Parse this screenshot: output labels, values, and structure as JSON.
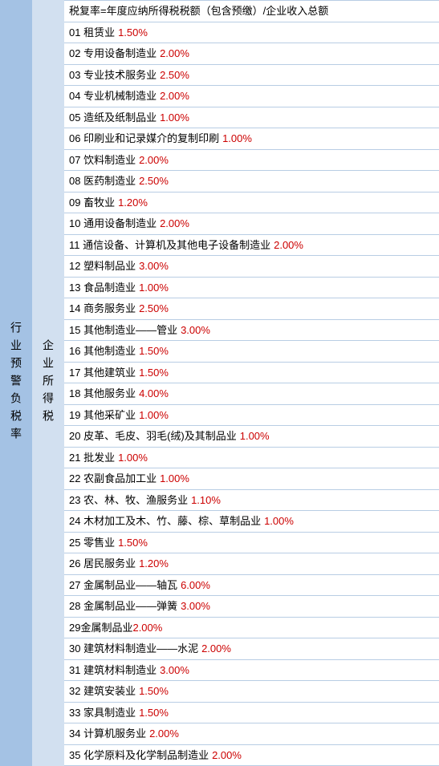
{
  "leftHeader": "行业预警负税率",
  "midHeader": "企业所得税",
  "formula": "税复率=年度应纳所得税税额（包含预缴）/企业收入总额",
  "rows": [
    {
      "num": "01",
      "label": "租赁业",
      "rate": "1.50%"
    },
    {
      "num": "02",
      "label": "专用设备制造业",
      "rate": "2.00%"
    },
    {
      "num": "03",
      "label": "专业技术服务业",
      "rate": "2.50%"
    },
    {
      "num": "04",
      "label": "专业机械制造业",
      "rate": "2.00%"
    },
    {
      "num": "05",
      "label": "造纸及纸制品业",
      "rate": "1.00%"
    },
    {
      "num": "06",
      "label": "印刷业和记录媒介的复制印刷",
      "rate": "1.00%"
    },
    {
      "num": "07",
      "label": "饮料制造业",
      "rate": "2.00%"
    },
    {
      "num": "08",
      "label": "医药制造业",
      "rate": "2.50%"
    },
    {
      "num": "09",
      "label": "畜牧业",
      "rate": "1.20%"
    },
    {
      "num": "10",
      "label": "通用设备制造业",
      "rate": "2.00%"
    },
    {
      "num": "11",
      "label": "通信设备、计算机及其他电子设备制造业",
      "rate": "2.00%"
    },
    {
      "num": "12",
      "label": "塑料制品业",
      "rate": "3.00%"
    },
    {
      "num": "13",
      "label": "食品制造业",
      "rate": "1.00%"
    },
    {
      "num": "14",
      "label": "商务服务业",
      "rate": "2.50%"
    },
    {
      "num": "15",
      "label": "其他制造业——管业",
      "rate": "3.00%"
    },
    {
      "num": "16",
      "label": "其他制造业",
      "rate": "1.50%"
    },
    {
      "num": "17",
      "label": "其他建筑业",
      "rate": "1.50%"
    },
    {
      "num": "18",
      "label": "其他服务业",
      "rate": "4.00%"
    },
    {
      "num": "19",
      "label": "其他采矿业",
      "rate": "1.00%"
    },
    {
      "num": "20",
      "label": "皮革、毛皮、羽毛(绒)及其制品业",
      "rate": "1.00%"
    },
    {
      "num": "21",
      "label": "批发业",
      "rate": "1.00%"
    },
    {
      "num": "22",
      "label": "农副食品加工业",
      "rate": "1.00%"
    },
    {
      "num": "23",
      "label": "农、林、牧、渔服务业",
      "rate": "1.10%"
    },
    {
      "num": "24",
      "label": "木材加工及木、竹、藤、棕、草制品业",
      "rate": "1.00%"
    },
    {
      "num": "25",
      "label": "零售业",
      "rate": "1.50%"
    },
    {
      "num": "26",
      "label": "居民服务业",
      "rate": "1.20%"
    },
    {
      "num": "27",
      "label": "金属制品业——轴瓦",
      "rate": "6.00%"
    },
    {
      "num": "28",
      "label": "金属制品业——弹簧",
      "rate": "3.00%"
    },
    {
      "num": "29",
      "label": "金属制品业",
      "rate": "2.00%",
      "nospace": true
    },
    {
      "num": "30",
      "label": "建筑材料制造业——水泥",
      "rate": "2.00%"
    },
    {
      "num": "31",
      "label": "建筑材料制造业",
      "rate": "3.00%"
    },
    {
      "num": "32",
      "label": "建筑安装业",
      "rate": "1.50%"
    },
    {
      "num": "33",
      "label": "家具制造业",
      "rate": "1.50%"
    },
    {
      "num": "34",
      "label": "计算机服务业",
      "rate": "2.00%"
    },
    {
      "num": "35",
      "label": "化学原料及化学制品制造业",
      "rate": "2.00%"
    }
  ],
  "colors": {
    "leftBg": "#a4c2e4",
    "midBg": "#d2e0f0",
    "rateColor": "#cc0000",
    "textColor": "#000000",
    "borderColor": "#b8cde4"
  }
}
